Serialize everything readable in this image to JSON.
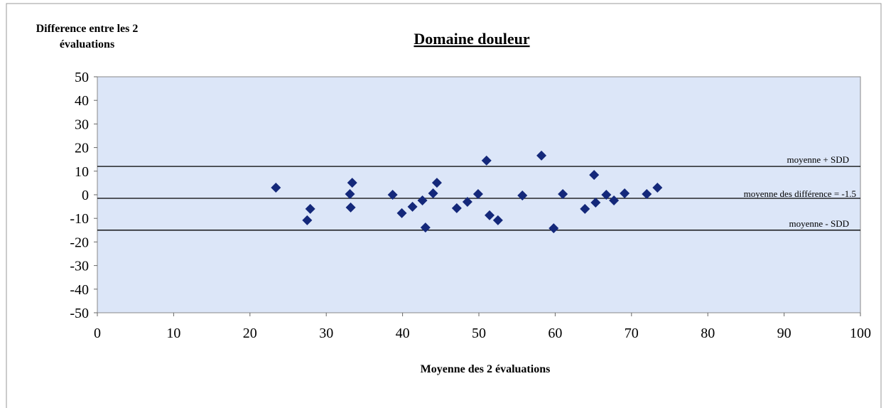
{
  "chart_data": {
    "type": "scatter",
    "title": "Domaine douleur",
    "x_label": "Moyenne des 2 évaluations",
    "y_label": "Difference entre les 2 évaluations",
    "x": [
      23.4,
      27.5,
      27.9,
      33.1,
      33.2,
      33.4,
      38.7,
      39.9,
      41.3,
      42.6,
      43.0,
      44.0,
      44.5,
      47.1,
      48.5,
      49.9,
      51.0,
      51.4,
      52.5,
      55.7,
      58.2,
      59.8,
      61.0,
      63.9,
      65.1,
      65.3,
      66.7,
      67.7,
      69.1,
      72.0,
      73.4
    ],
    "values": [
      3,
      -10.8,
      -6,
      0.3,
      -5.4,
      5.1,
      0,
      -7.8,
      -5.1,
      -2.4,
      -13.9,
      0.6,
      5.1,
      -5.7,
      -3,
      0.3,
      14.5,
      -8.7,
      -10.8,
      -0.3,
      16.6,
      -14.2,
      0.3,
      -6,
      8.4,
      -3.3,
      0,
      -2.4,
      0.6,
      0.3,
      3
    ],
    "color": "#14287a",
    "xlim": [
      0,
      100
    ],
    "xticks": [
      0,
      10,
      20,
      30,
      40,
      50,
      60,
      70,
      80,
      90,
      100
    ],
    "ylim": [
      -50,
      50
    ],
    "yticks": [
      -50,
      -40,
      -30,
      -20,
      -10,
      0,
      10,
      20,
      30,
      40,
      50
    ],
    "reference_lines": [
      {
        "value": 12,
        "label": "moyenne + SDD"
      },
      {
        "value": -1.5,
        "label": "moyenne des différence = -1.5"
      },
      {
        "value": -15,
        "label": "moyenne - SDD"
      }
    ]
  }
}
